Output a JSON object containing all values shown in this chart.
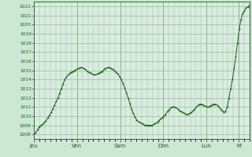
{
  "bg_color": "#cce8d4",
  "plot_bg_color": "#d8ece0",
  "line_color": "#1a5c1a",
  "marker_color": "#1a5c1a",
  "grid_color": "#99bb99",
  "tick_label_color": "#1a5c1a",
  "axis_label_color": "#1a5c1a",
  "spine_color": "#336633",
  "ylim_min": 1007.5,
  "ylim_max": 1022.5,
  "yticks": [
    1008,
    1009,
    1010,
    1011,
    1012,
    1013,
    1014,
    1015,
    1016,
    1017,
    1018,
    1019,
    1020,
    1021,
    1022
  ],
  "days": [
    "Jeu",
    "Ven",
    "Sam",
    "Dim",
    "Lun",
    "M"
  ],
  "day_positions": [
    0,
    24,
    48,
    72,
    96,
    114
  ],
  "total_hours": 120,
  "pressure_data": [
    1008.0,
    1008.2,
    1008.5,
    1008.8,
    1009.0,
    1009.1,
    1009.3,
    1009.5,
    1009.8,
    1010.1,
    1010.4,
    1010.8,
    1011.2,
    1011.6,
    1012.0,
    1012.5,
    1013.0,
    1013.5,
    1014.0,
    1014.3,
    1014.5,
    1014.7,
    1014.8,
    1014.9,
    1015.0,
    1015.1,
    1015.2,
    1015.3,
    1015.3,
    1015.2,
    1015.1,
    1014.9,
    1014.8,
    1014.7,
    1014.6,
    1014.5,
    1014.5,
    1014.6,
    1014.7,
    1014.8,
    1014.9,
    1015.1,
    1015.2,
    1015.3,
    1015.3,
    1015.2,
    1015.1,
    1015.0,
    1014.8,
    1014.6,
    1014.3,
    1014.0,
    1013.6,
    1013.1,
    1012.6,
    1012.0,
    1011.4,
    1010.8,
    1010.3,
    1009.9,
    1009.6,
    1009.4,
    1009.3,
    1009.2,
    1009.1,
    1009.0,
    1009.0,
    1009.0,
    1009.0,
    1009.0,
    1009.1,
    1009.2,
    1009.3,
    1009.5,
    1009.7,
    1009.8,
    1010.0,
    1010.2,
    1010.5,
    1010.7,
    1010.9,
    1011.0,
    1011.0,
    1010.9,
    1010.8,
    1010.6,
    1010.5,
    1010.4,
    1010.3,
    1010.2,
    1010.2,
    1010.3,
    1010.4,
    1010.6,
    1010.8,
    1011.0,
    1011.2,
    1011.3,
    1011.3,
    1011.2,
    1011.1,
    1011.0,
    1011.0,
    1011.1,
    1011.2,
    1011.3,
    1011.3,
    1011.2,
    1011.0,
    1010.8,
    1010.6,
    1010.4,
    1010.5,
    1011.0,
    1012.0,
    1013.0,
    1014.0,
    1015.2,
    1016.5,
    1018.0,
    1019.5,
    1020.5,
    1021.2,
    1021.5,
    1021.8,
    1021.9,
    1022.1
  ]
}
